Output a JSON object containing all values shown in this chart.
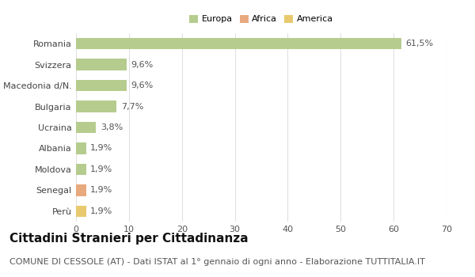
{
  "categories": [
    "Romania",
    "Svizzera",
    "Macedonia d/N.",
    "Bulgaria",
    "Ucraina",
    "Albania",
    "Moldova",
    "Senegal",
    "Perù"
  ],
  "values": [
    61.5,
    9.6,
    9.6,
    7.7,
    3.8,
    1.9,
    1.9,
    1.9,
    1.9
  ],
  "labels": [
    "61,5%",
    "9,6%",
    "9,6%",
    "7,7%",
    "3,8%",
    "1,9%",
    "1,9%",
    "1,9%",
    "1,9%"
  ],
  "colors": [
    "#b5cc8e",
    "#b5cc8e",
    "#b5cc8e",
    "#b5cc8e",
    "#b5cc8e",
    "#b5cc8e",
    "#b5cc8e",
    "#e8a97e",
    "#e8c96e"
  ],
  "legend_labels": [
    "Europa",
    "Africa",
    "America"
  ],
  "legend_colors": [
    "#b5cc8e",
    "#e8a97e",
    "#e8c96e"
  ],
  "title": "Cittadini Stranieri per Cittadinanza",
  "subtitle": "COMUNE DI CESSOLE (AT) - Dati ISTAT al 1° gennaio di ogni anno - Elaborazione TUTTITALIA.IT",
  "xlim": [
    0,
    70
  ],
  "xticks": [
    0,
    10,
    20,
    30,
    40,
    50,
    60,
    70
  ],
  "background_color": "#ffffff",
  "grid_color": "#e0e0e0",
  "bar_height": 0.55,
  "title_fontsize": 11,
  "subtitle_fontsize": 8,
  "label_fontsize": 8,
  "tick_fontsize": 8,
  "legend_fontsize": 8
}
